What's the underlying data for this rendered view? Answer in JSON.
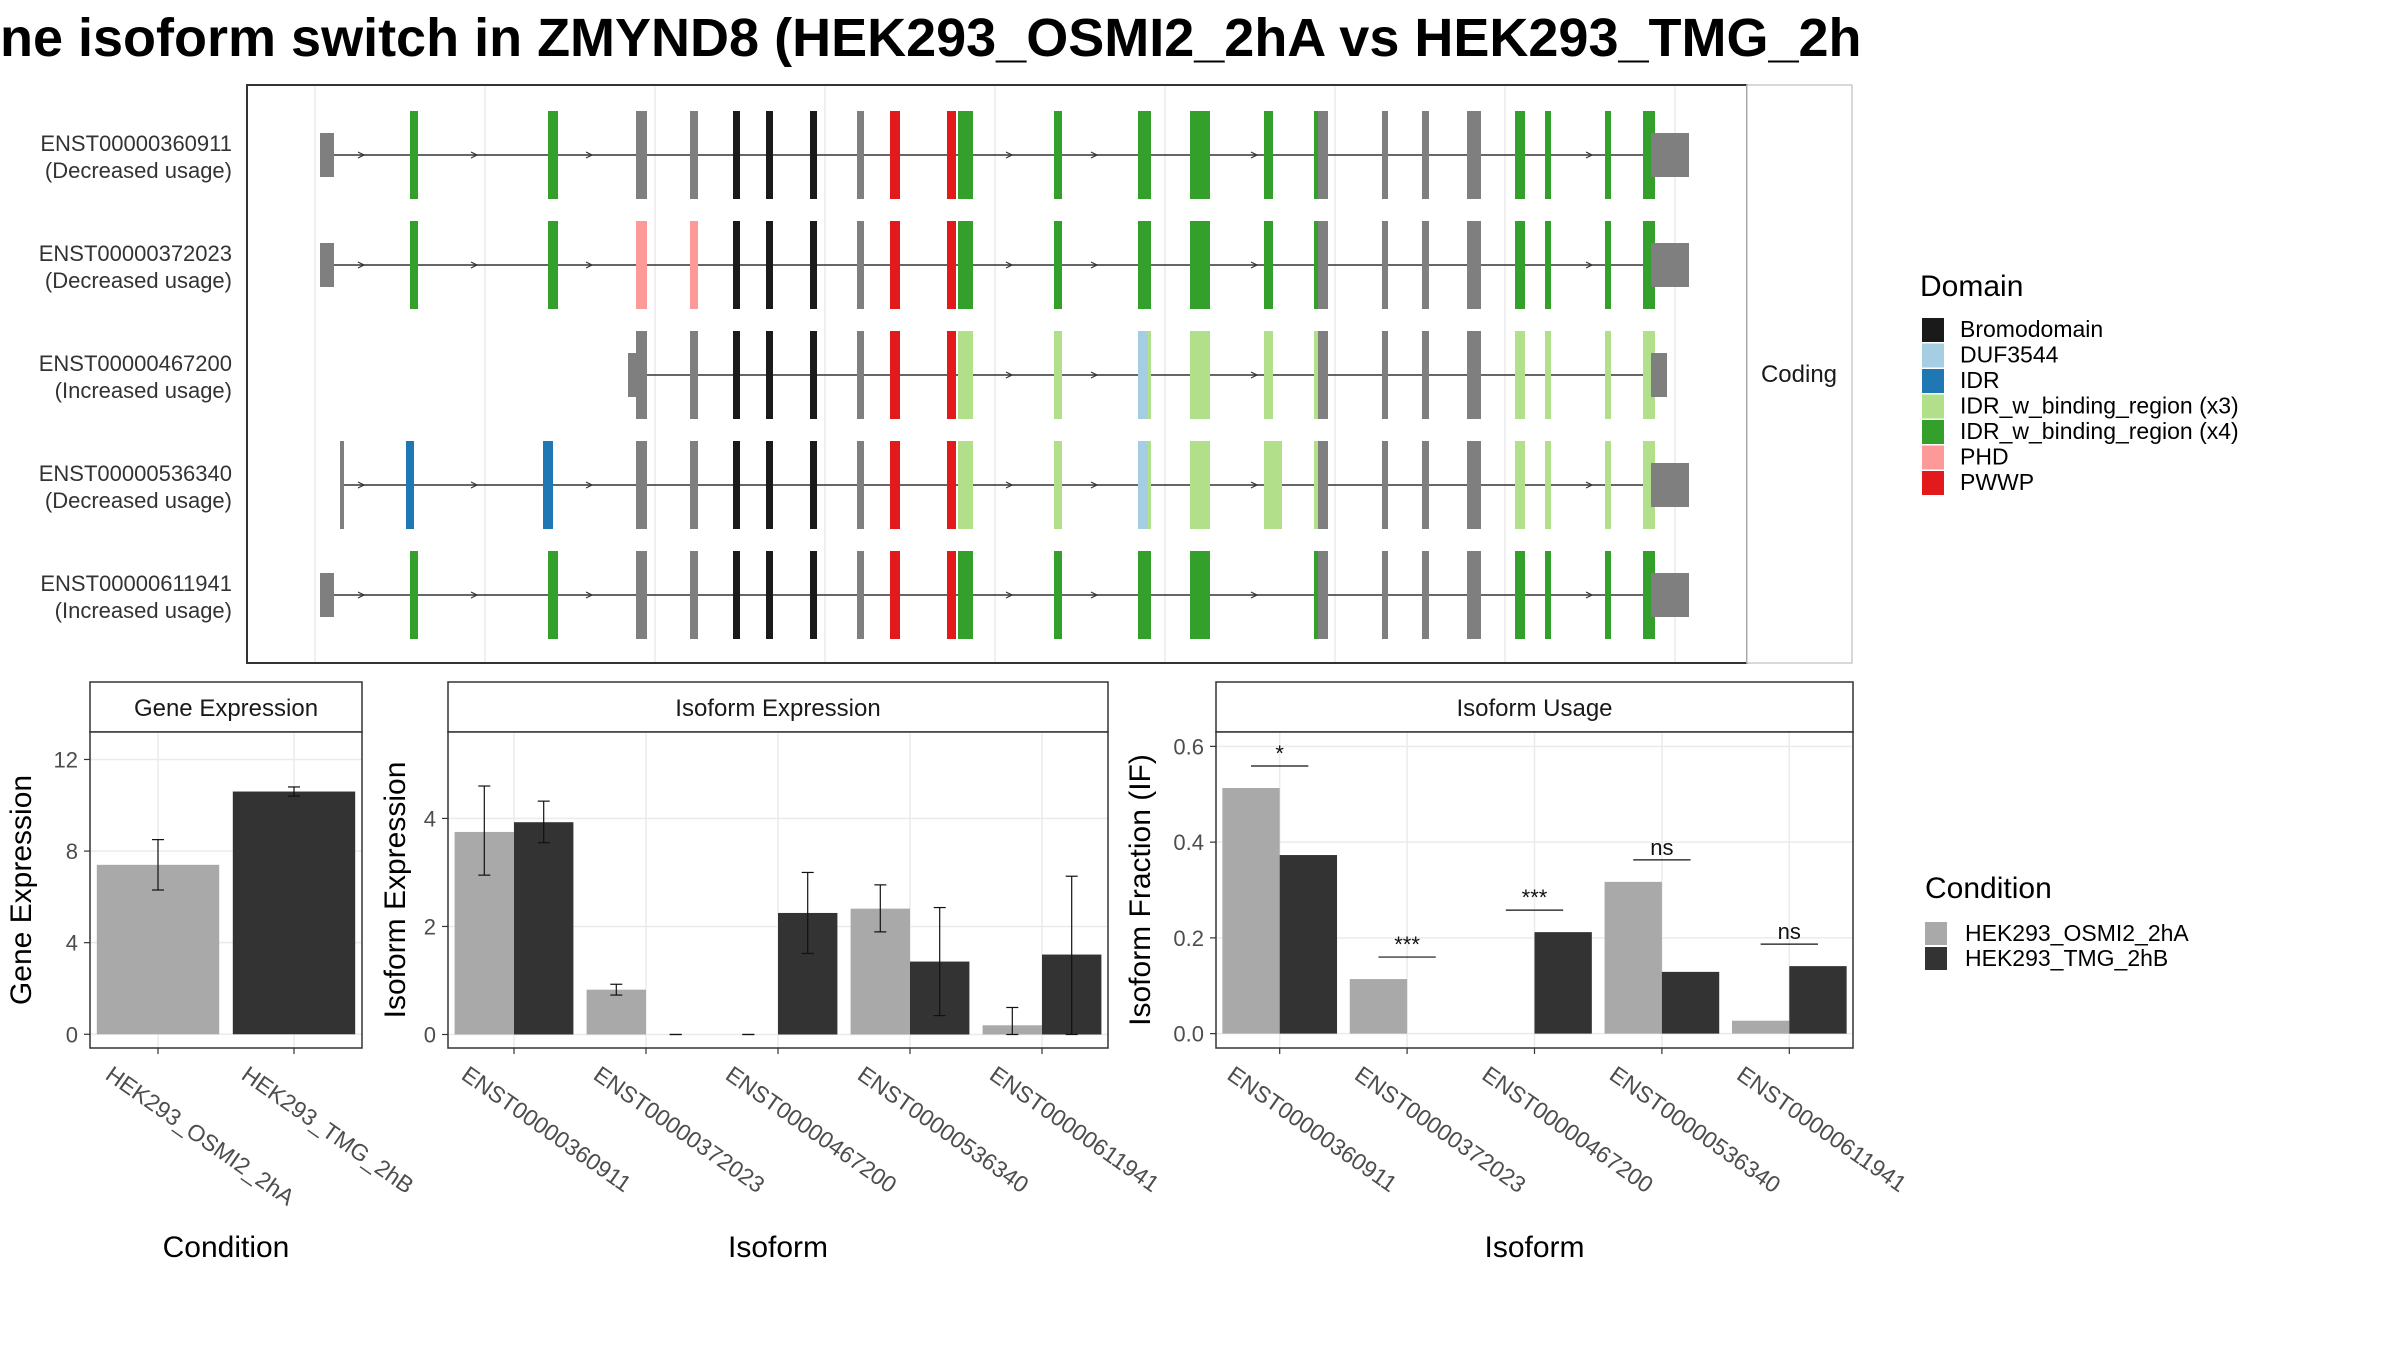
{
  "title": "ne isoform switch in ZMYND8 (HEK293_OSMI2_2hA vs HEK293_TMG_2h",
  "colors": {
    "bromodomain": "#1a1a1a",
    "duf3544": "#a6cee3",
    "idr": "#1f78b4",
    "idr_binding_x3": "#b2df8a",
    "idr_binding_x4": "#33a02c",
    "phd": "#fb9a99",
    "pwwp": "#e31a1c",
    "noncoding_exon": "#7f7f7f",
    "condition_a": "#a9a9a9",
    "condition_b": "#333333"
  },
  "structure": {
    "facet_label": "Coding",
    "isoforms": [
      {
        "id": "ENST00000360911",
        "usage": "(Decreased usage)"
      },
      {
        "id": "ENST00000372023",
        "usage": "(Decreased usage)"
      },
      {
        "id": "ENST00000467200",
        "usage": "(Increased usage)"
      },
      {
        "id": "ENST00000536340",
        "usage": "(Decreased usage)"
      },
      {
        "id": "ENST00000611941",
        "usage": "(Increased usage)"
      }
    ],
    "legend_title": "Domain",
    "legend": [
      {
        "label": "Bromodomain",
        "key": "bromodomain"
      },
      {
        "label": "DUF3544",
        "key": "duf3544"
      },
      {
        "label": "IDR",
        "key": "idr"
      },
      {
        "label": "IDR_w_binding_region (x3)",
        "key": "idr_binding_x3"
      },
      {
        "label": "IDR_w_binding_region (x4)",
        "key": "idr_binding_x4"
      },
      {
        "label": "PHD",
        "key": "phd"
      },
      {
        "label": "PWWP",
        "key": "pwwp"
      }
    ]
  },
  "condition_legend": {
    "title": "Condition",
    "items": [
      {
        "label": "HEK293_OSMI2_2hA",
        "key": "condition_a"
      },
      {
        "label": "HEK293_TMG_2hB",
        "key": "condition_b"
      }
    ]
  },
  "chart_data": [
    {
      "type": "bar",
      "title": "Gene Expression",
      "xlabel": "Condition",
      "ylabel": "Gene Expression",
      "categories": [
        "HEK293_OSMI2_2hA",
        "HEK293_TMG_2hB"
      ],
      "values": [
        7.4,
        10.6
      ],
      "error_low": [
        6.3,
        10.4
      ],
      "error_high": [
        8.5,
        10.8
      ],
      "ylim": [
        -0.6,
        13.2
      ],
      "yticks": [
        0,
        4,
        8,
        12
      ]
    },
    {
      "type": "bar",
      "title": "Isoform Expression",
      "xlabel": "Isoform",
      "ylabel": "Isoform Expression",
      "categories": [
        "ENST00000360911",
        "ENST00000372023",
        "ENST00000467200",
        "ENST00000536340",
        "ENST00000611941"
      ],
      "series": [
        {
          "name": "HEK293_OSMI2_2hA",
          "values": [
            3.75,
            0.83,
            0.0,
            2.33,
            0.17
          ],
          "error_low": [
            2.95,
            0.73,
            0.0,
            1.9,
            0.0
          ],
          "error_high": [
            4.6,
            0.93,
            0.0,
            2.77,
            0.5
          ]
        },
        {
          "name": "HEK293_TMG_2hB",
          "values": [
            3.93,
            0.0,
            2.25,
            1.35,
            1.48
          ],
          "error_low": [
            3.55,
            0.0,
            1.5,
            0.35,
            0.0
          ],
          "error_high": [
            4.32,
            0.0,
            3.0,
            2.35,
            2.93
          ]
        }
      ],
      "ylim": [
        -0.25,
        5.6
      ],
      "yticks": [
        0,
        2,
        4
      ]
    },
    {
      "type": "bar",
      "title": "Isoform Usage",
      "xlabel": "Isoform",
      "ylabel": "Isoform Fraction (IF)",
      "categories": [
        "ENST00000360911",
        "ENST00000372023",
        "ENST00000467200",
        "ENST00000536340",
        "ENST00000611941"
      ],
      "series": [
        {
          "name": "HEK293_OSMI2_2hA",
          "values": [
            0.513,
            0.114,
            0.0,
            0.317,
            0.027
          ]
        },
        {
          "name": "HEK293_TMG_2hB",
          "values": [
            0.373,
            0.0,
            0.212,
            0.129,
            0.141
          ]
        }
      ],
      "significance": [
        "*",
        "***",
        "***",
        "ns",
        "ns"
      ],
      "ylim": [
        -0.03,
        0.63
      ],
      "yticks": [
        0.0,
        0.2,
        0.4,
        0.6
      ],
      "ytick_labels": [
        "0.0",
        "0.2",
        "0.4",
        "0.6"
      ]
    }
  ]
}
